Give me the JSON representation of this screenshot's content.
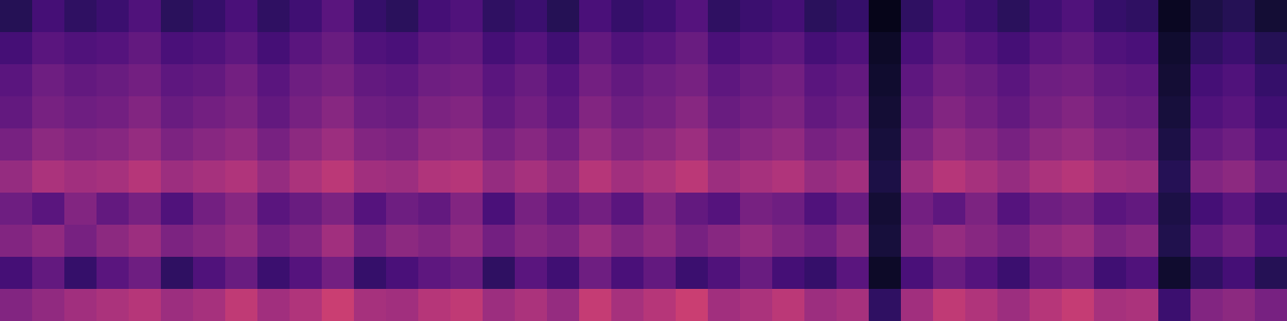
{
  "chart_data": {
    "type": "heatmap",
    "color": "magma",
    "tick_labels": false,
    "value_range": [
      0,
      80
    ],
    "cells": [
      [
        12,
        18,
        14,
        16,
        20,
        13,
        15,
        19,
        14,
        17,
        22,
        15,
        13,
        18,
        20,
        14,
        16,
        12,
        19,
        15,
        17,
        21,
        14,
        16,
        18,
        13,
        15,
        4,
        14,
        19,
        16,
        13,
        17,
        20,
        15,
        14,
        5,
        10,
        12,
        8
      ],
      [
        18,
        22,
        20,
        21,
        24,
        19,
        20,
        23,
        18,
        22,
        25,
        20,
        19,
        23,
        24,
        18,
        21,
        17,
        24,
        20,
        22,
        25,
        19,
        21,
        23,
        18,
        20,
        6,
        19,
        24,
        21,
        18,
        22,
        24,
        20,
        19,
        7,
        14,
        16,
        12
      ],
      [
        22,
        26,
        24,
        25,
        27,
        23,
        24,
        27,
        22,
        26,
        28,
        24,
        23,
        26,
        27,
        22,
        25,
        21,
        27,
        24,
        26,
        28,
        23,
        25,
        27,
        22,
        24,
        7,
        23,
        27,
        25,
        22,
        26,
        27,
        24,
        23,
        8,
        18,
        20,
        15
      ],
      [
        24,
        28,
        26,
        27,
        30,
        25,
        27,
        29,
        24,
        28,
        31,
        26,
        25,
        29,
        30,
        24,
        27,
        23,
        30,
        26,
        28,
        31,
        25,
        27,
        29,
        24,
        26,
        8,
        25,
        30,
        27,
        24,
        28,
        30,
        26,
        25,
        9,
        20,
        22,
        17
      ],
      [
        28,
        32,
        30,
        31,
        34,
        29,
        31,
        33,
        28,
        32,
        35,
        30,
        29,
        33,
        34,
        28,
        31,
        27,
        34,
        30,
        32,
        35,
        29,
        31,
        33,
        28,
        30,
        9,
        29,
        34,
        31,
        28,
        32,
        34,
        30,
        29,
        10,
        24,
        26,
        20
      ],
      [
        34,
        38,
        36,
        37,
        40,
        35,
        37,
        39,
        34,
        38,
        41,
        36,
        35,
        39,
        40,
        34,
        37,
        33,
        40,
        36,
        38,
        41,
        35,
        37,
        39,
        34,
        36,
        10,
        35,
        40,
        37,
        34,
        38,
        40,
        36,
        35,
        12,
        30,
        32,
        26
      ],
      [
        26,
        22,
        30,
        24,
        28,
        20,
        27,
        31,
        22,
        25,
        29,
        21,
        26,
        24,
        30,
        19,
        28,
        23,
        27,
        22,
        30,
        24,
        21,
        28,
        26,
        20,
        25,
        8,
        27,
        23,
        29,
        21,
        26,
        28,
        22,
        24,
        10,
        18,
        22,
        16
      ],
      [
        30,
        33,
        28,
        32,
        35,
        29,
        31,
        34,
        27,
        30,
        36,
        28,
        32,
        30,
        34,
        27,
        31,
        29,
        35,
        30,
        33,
        28,
        31,
        34,
        30,
        27,
        32,
        9,
        30,
        34,
        31,
        28,
        33,
        35,
        29,
        31,
        11,
        24,
        27,
        20
      ],
      [
        18,
        24,
        15,
        22,
        26,
        14,
        20,
        25,
        16,
        21,
        27,
        15,
        19,
        23,
        25,
        14,
        22,
        17,
        26,
        19,
        24,
        16,
        20,
        25,
        18,
        15,
        22,
        6,
        19,
        25,
        21,
        16,
        24,
        26,
        17,
        20,
        7,
        14,
        18,
        12
      ],
      [
        30,
        33,
        36,
        38,
        40,
        35,
        37,
        42,
        36,
        39,
        44,
        37,
        36,
        40,
        42,
        35,
        38,
        34,
        43,
        37,
        40,
        44,
        36,
        38,
        41,
        35,
        37,
        14,
        36,
        42,
        39,
        35,
        40,
        43,
        37,
        38,
        16,
        30,
        32,
        28
      ]
    ]
  }
}
